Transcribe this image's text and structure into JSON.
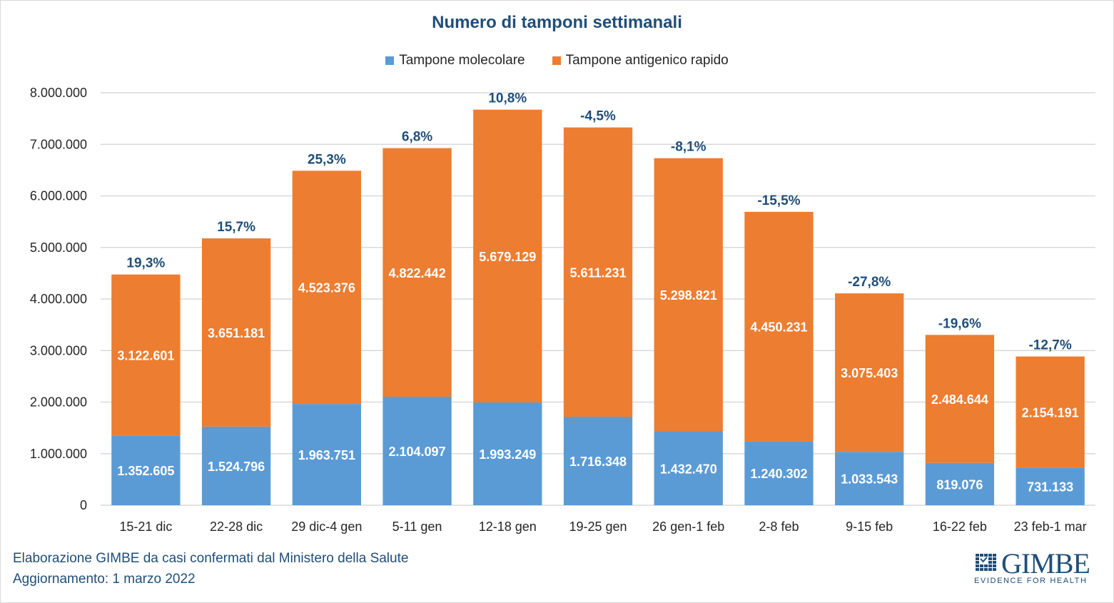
{
  "chart_data": {
    "type": "bar",
    "stacked": true,
    "title": "Numero di tamponi settimanali",
    "xlabel": "",
    "ylabel": "",
    "ylim": [
      0,
      8000000
    ],
    "yticks": [
      0,
      1000000,
      2000000,
      3000000,
      4000000,
      5000000,
      6000000,
      7000000,
      8000000
    ],
    "ytick_labels": [
      "0",
      "1.000.000",
      "2.000.000",
      "3.000.000",
      "4.000.000",
      "5.000.000",
      "6.000.000",
      "7.000.000",
      "8.000.000"
    ],
    "grid": true,
    "legend_position": "top-center",
    "categories": [
      "15-21 dic",
      "22-28 dic",
      "29 dic-4 gen",
      "5-11 gen",
      "12-18 gen",
      "19-25 gen",
      "26 gen-1 feb",
      "2-8 feb",
      "9-15 feb",
      "16-22 feb",
      "23 feb-1 mar"
    ],
    "series": [
      {
        "name": "Tampone molecolare",
        "color": "#5b9bd5",
        "values": [
          1352605,
          1524796,
          1963751,
          2104097,
          1993249,
          1716348,
          1432470,
          1240302,
          1033543,
          819076,
          731133
        ],
        "labels": [
          "1.352.605",
          "1.524.796",
          "1.963.751",
          "2.104.097",
          "1.993.249",
          "1.716.348",
          "1.432.470",
          "1.240.302",
          "1.033.543",
          "819.076",
          "731.133"
        ]
      },
      {
        "name": "Tampone antigenico rapido",
        "color": "#ed7d31",
        "values": [
          3122601,
          3651181,
          4523376,
          4822442,
          5679129,
          5611231,
          5298821,
          4450231,
          3075403,
          2484644,
          2154191
        ],
        "labels": [
          "3.122.601",
          "3.651.181",
          "4.523.376",
          "4.822.442",
          "5.679.129",
          "5.611.231",
          "5.298.821",
          "4.450.231",
          "3.075.403",
          "2.484.644",
          "2.154.191"
        ]
      }
    ],
    "annotations": {
      "description": "Weekly % change of total tests, shown above each bar",
      "values": [
        "19,3%",
        "15,7%",
        "25,3%",
        "6,8%",
        "10,8%",
        "-4,5%",
        "-8,1%",
        "-15,5%",
        "-27,8%",
        "-19,6%",
        "-12,7%"
      ],
      "color": "#1f4e79"
    }
  },
  "legend": {
    "items": [
      {
        "label": "Tampone molecolare",
        "color": "#5b9bd5"
      },
      {
        "label": "Tampone antigenico rapido",
        "color": "#ed7d31"
      }
    ]
  },
  "footer": {
    "source": "Elaborazione GIMBE da casi confermati dal Ministero della Salute",
    "updated": "Aggiornamento: 1 marzo 2022"
  },
  "logo": {
    "name": "GIMBE",
    "tagline": "EVIDENCE FOR HEALTH"
  }
}
